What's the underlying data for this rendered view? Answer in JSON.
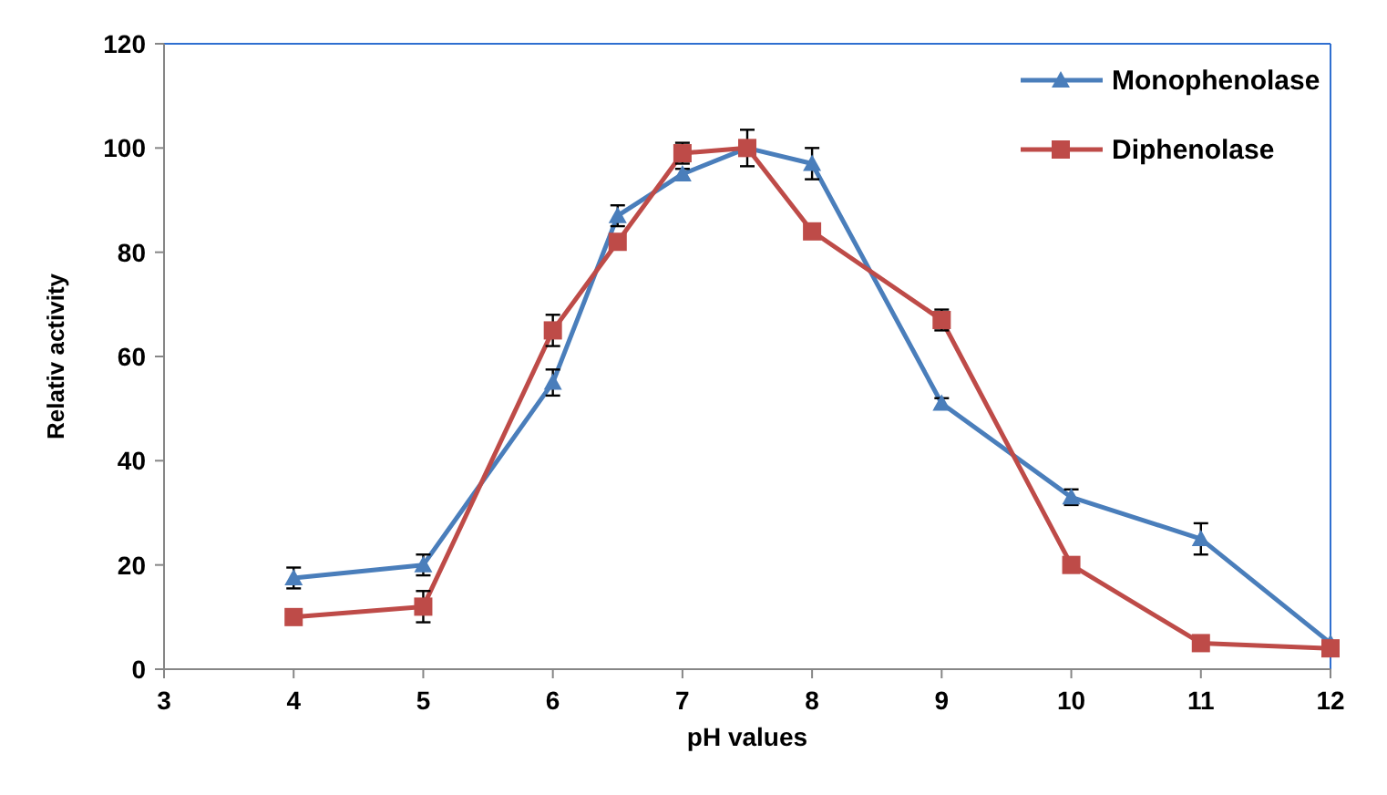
{
  "chart_data": {
    "type": "line",
    "xlabel": "pH values",
    "ylabel": "Relativ activity",
    "xlim": [
      3,
      12
    ],
    "xticks": [
      3,
      4,
      5,
      6,
      7,
      8,
      9,
      10,
      11,
      12
    ],
    "ylim": [
      0,
      120
    ],
    "yticks": [
      0,
      20,
      40,
      60,
      80,
      100,
      120
    ],
    "grid": false,
    "legend": "top right",
    "line_style": "solid",
    "series": [
      {
        "name": "Monophenolase",
        "color": "#4a7ebb",
        "marker": "triangle",
        "x": [
          4,
          5,
          6,
          6.5,
          7,
          7.5,
          8,
          9,
          10,
          11,
          12
        ],
        "values": [
          17.5,
          20,
          55,
          87,
          95,
          100,
          97,
          51,
          33,
          25,
          5
        ],
        "errors": [
          2,
          2,
          2.5,
          2,
          1,
          null,
          3,
          1,
          1.5,
          3,
          null
        ]
      },
      {
        "name": "Diphenolase",
        "color": "#be4b48",
        "marker": "square",
        "x": [
          4,
          5,
          6,
          6.5,
          7,
          7.5,
          8,
          9,
          10,
          11,
          12
        ],
        "values": [
          10,
          12,
          65,
          82,
          99,
          100,
          84,
          67,
          20,
          5,
          4
        ],
        "errors": [
          null,
          3,
          3,
          null,
          2,
          3.5,
          null,
          2,
          null,
          null,
          null
        ]
      }
    ]
  }
}
